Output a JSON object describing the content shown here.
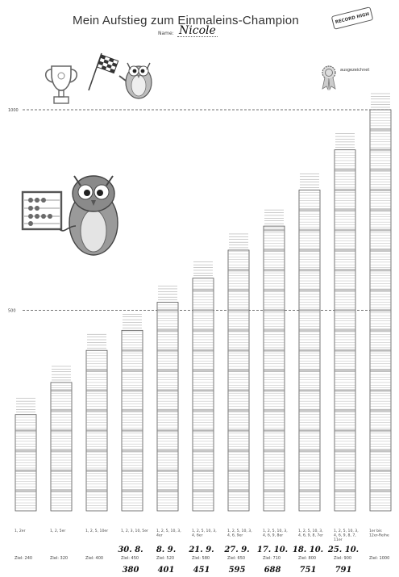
{
  "header": {
    "title": "Mein Aufstieg zum Einmaleins-Champion",
    "name_label": "Name:",
    "name_value": "Nicole",
    "stamp_text": "RECORD HIGH",
    "rosette_label": "ausgezeichnet"
  },
  "chart_data": {
    "type": "bar",
    "title": "Mein Aufstieg zum Einmaleins-Champion",
    "xlabel": "",
    "ylabel": "",
    "ylim": [
      0,
      1000
    ],
    "y_tick_labels": [
      "500",
      "1000"
    ],
    "grid": false,
    "reference_lines": [
      500,
      1000
    ],
    "categories": [
      "1, 2er",
      "1, 2, 5er",
      "1, 2, 5, 10er",
      "1, 2, 3, 10, 5er",
      "1, 2, 5, 10, 3, 4er",
      "1, 2, 5, 10, 3, 4, 6er",
      "1, 2, 5, 10, 3, 4, 6, 9er",
      "1, 2, 5, 10, 3, 4, 6, 9, 8er",
      "1, 2, 5, 10, 3, 4, 6, 9, 8, 7er",
      "1, 2, 5, 10, 3, 4, 6, 9, 8, 7, 11er",
      "1er bis 12er-Reihe"
    ],
    "goal_labels": [
      "Ziel: 240",
      "Ziel: 320",
      "Ziel: 400",
      "Ziel: 450",
      "Ziel: 520",
      "Ziel: 580",
      "Ziel: 650",
      "Ziel: 710",
      "Ziel: 800",
      "Ziel: 900",
      "Ziel: 1000"
    ],
    "goals": [
      240,
      320,
      400,
      450,
      520,
      580,
      650,
      710,
      800,
      900,
      1000
    ],
    "dates": [
      "",
      "",
      "",
      "30. 8.",
      "8. 9.",
      "21. 9.",
      "27. 9.",
      "17. 10.",
      "18. 10.",
      "25. 10.",
      ""
    ],
    "scores": [
      "",
      "",
      "",
      "380",
      "401",
      "451",
      "595",
      "688",
      "751",
      "791",
      ""
    ],
    "values": [
      240,
      320,
      400,
      450,
      520,
      580,
      650,
      710,
      800,
      900,
      1000
    ],
    "colors": {
      "bar_line": "#9a9a9a",
      "band": "#888888",
      "ref_line": "#444444",
      "outline": "#555555"
    }
  }
}
